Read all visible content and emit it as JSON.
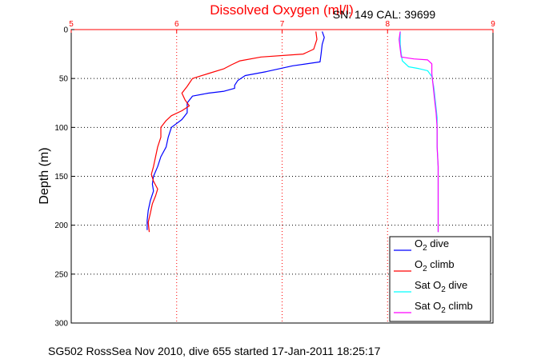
{
  "chart_data": {
    "type": "line",
    "title": "Dissolved Oxygen (ml/l)",
    "subtitle": "SN: 149  CAL: 39699",
    "xlabel": "",
    "ylabel": "Depth (m)",
    "xlim": [
      5,
      9
    ],
    "ylim": [
      0,
      300
    ],
    "y_reversed": true,
    "x_ticks": [
      "5",
      "6",
      "7",
      "8",
      "9"
    ],
    "y_ticks": [
      "0",
      "50",
      "100",
      "150",
      "200",
      "250",
      "300"
    ],
    "grid": true,
    "legend_position": "bottom-right",
    "footer": "SG502 RossSea Nov 2010, dive 655 started 17-Jan-2011 18:25:17",
    "series": [
      {
        "name": "O2 dive",
        "legend_main": "O",
        "legend_sub": "2",
        "legend_suffix": " dive",
        "color": "#0000ff",
        "points": [
          [
            7.38,
            2
          ],
          [
            7.4,
            8
          ],
          [
            7.38,
            15
          ],
          [
            7.37,
            25
          ],
          [
            7.36,
            33
          ],
          [
            7.1,
            37
          ],
          [
            6.85,
            43
          ],
          [
            6.65,
            47
          ],
          [
            6.58,
            52
          ],
          [
            6.55,
            57
          ],
          [
            6.55,
            60
          ],
          [
            6.45,
            63
          ],
          [
            6.3,
            65
          ],
          [
            6.15,
            68
          ],
          [
            6.1,
            75
          ],
          [
            6.1,
            85
          ],
          [
            6.05,
            92
          ],
          [
            5.95,
            100
          ],
          [
            5.92,
            110
          ],
          [
            5.9,
            120
          ],
          [
            5.85,
            130
          ],
          [
            5.82,
            140
          ],
          [
            5.78,
            150
          ],
          [
            5.77,
            158
          ],
          [
            5.78,
            165
          ],
          [
            5.75,
            175
          ],
          [
            5.73,
            185
          ],
          [
            5.72,
            195
          ],
          [
            5.72,
            205
          ]
        ]
      },
      {
        "name": "O2 climb",
        "legend_main": "O",
        "legend_sub": "2",
        "legend_suffix": " climb",
        "color": "#ff0000",
        "points": [
          [
            7.32,
            2
          ],
          [
            7.33,
            10
          ],
          [
            7.3,
            20
          ],
          [
            7.2,
            25
          ],
          [
            6.8,
            28
          ],
          [
            6.6,
            32
          ],
          [
            6.52,
            36
          ],
          [
            6.45,
            40
          ],
          [
            6.3,
            45
          ],
          [
            6.15,
            50
          ],
          [
            6.1,
            58
          ],
          [
            6.05,
            65
          ],
          [
            6.08,
            72
          ],
          [
            6.12,
            78
          ],
          [
            6.05,
            83
          ],
          [
            5.95,
            88
          ],
          [
            5.9,
            93
          ],
          [
            5.85,
            100
          ],
          [
            5.85,
            110
          ],
          [
            5.82,
            120
          ],
          [
            5.8,
            130
          ],
          [
            5.78,
            140
          ],
          [
            5.76,
            148
          ],
          [
            5.78,
            155
          ],
          [
            5.82,
            163
          ],
          [
            5.8,
            170
          ],
          [
            5.77,
            178
          ],
          [
            5.75,
            188
          ],
          [
            5.73,
            197
          ],
          [
            5.74,
            207
          ]
        ]
      },
      {
        "name": "Sat O2 dive",
        "legend_main": "Sat O",
        "legend_sub": "2",
        "legend_suffix": " dive",
        "color": "#00ffff",
        "points": [
          [
            8.12,
            2
          ],
          [
            8.12,
            15
          ],
          [
            8.13,
            25
          ],
          [
            8.14,
            32
          ],
          [
            8.2,
            38
          ],
          [
            8.3,
            40
          ],
          [
            8.38,
            42
          ],
          [
            8.42,
            48
          ],
          [
            8.44,
            60
          ],
          [
            8.45,
            70
          ],
          [
            8.46,
            80
          ],
          [
            8.47,
            90
          ],
          [
            8.47,
            100
          ],
          [
            8.47,
            120
          ],
          [
            8.48,
            140
          ],
          [
            8.48,
            160
          ],
          [
            8.48,
            180
          ],
          [
            8.48,
            200
          ],
          [
            8.48,
            207
          ]
        ]
      },
      {
        "name": "Sat O2 climb",
        "legend_main": "Sat O",
        "legend_sub": "2",
        "legend_suffix": " climb",
        "color": "#ff00ff",
        "points": [
          [
            8.12,
            2
          ],
          [
            8.11,
            10
          ],
          [
            8.12,
            20
          ],
          [
            8.13,
            28
          ],
          [
            8.25,
            30
          ],
          [
            8.38,
            31
          ],
          [
            8.42,
            35
          ],
          [
            8.42,
            45
          ],
          [
            8.43,
            55
          ],
          [
            8.44,
            65
          ],
          [
            8.45,
            75
          ],
          [
            8.46,
            85
          ],
          [
            8.47,
            100
          ],
          [
            8.47,
            120
          ],
          [
            8.48,
            140
          ],
          [
            8.48,
            160
          ],
          [
            8.48,
            180
          ],
          [
            8.48,
            200
          ],
          [
            8.48,
            207
          ]
        ]
      }
    ]
  }
}
